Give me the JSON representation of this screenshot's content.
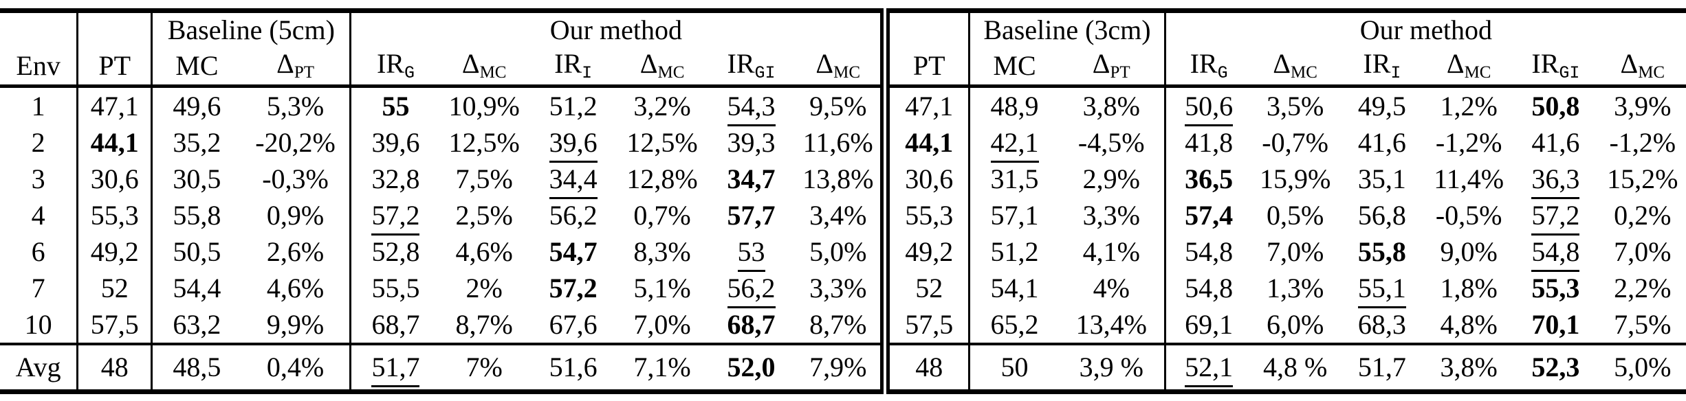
{
  "table": {
    "groups": [
      {
        "label": "Baseline (5cm)"
      },
      {
        "label": "Our method"
      },
      {
        "label": "Baseline (3cm)"
      },
      {
        "label": "Our method"
      }
    ],
    "columns": [
      {
        "base": "Env",
        "w": 4.6,
        "edge": "r"
      },
      {
        "base": "PT",
        "w": 4.4,
        "edge": "r"
      },
      {
        "base": "MC",
        "w": 5.3,
        "edge": ""
      },
      {
        "base": "Δ",
        "sub": "PT",
        "w": 6.5,
        "edge": "r"
      },
      {
        "base": "IR",
        "sub": "G",
        "w": 5.28,
        "edge": ""
      },
      {
        "base": "Δ",
        "sub": "MC",
        "w": 5.28,
        "edge": ""
      },
      {
        "base": "IR",
        "sub": "I",
        "w": 5.28,
        "edge": ""
      },
      {
        "base": "Δ",
        "sub": "MC",
        "w": 5.28,
        "edge": ""
      },
      {
        "base": "IR",
        "sub": "GI",
        "w": 5.28,
        "edge": ""
      },
      {
        "base": "Δ",
        "sub": "MC",
        "w": 5.3,
        "edge": "rr"
      },
      {
        "base": "PT",
        "w": 5.0,
        "edge": "r"
      },
      {
        "base": "MC",
        "w": 5.3,
        "edge": ""
      },
      {
        "base": "Δ",
        "sub": "PT",
        "w": 6.3,
        "edge": "r"
      },
      {
        "base": "IR",
        "sub": "G",
        "w": 5.15,
        "edge": ""
      },
      {
        "base": "Δ",
        "sub": "MC",
        "w": 5.15,
        "edge": ""
      },
      {
        "base": "IR",
        "sub": "I",
        "w": 5.15,
        "edge": ""
      },
      {
        "base": "Δ",
        "sub": "MC",
        "w": 5.15,
        "edge": ""
      },
      {
        "base": "IR",
        "sub": "GI",
        "w": 5.15,
        "edge": ""
      },
      {
        "base": "Δ",
        "sub": "MC",
        "w": 5.15,
        "edge": ""
      }
    ],
    "rows": [
      {
        "cells": [
          {
            "v": "1"
          },
          {
            "v": "47,1"
          },
          {
            "v": "49,6"
          },
          {
            "v": "5,3%"
          },
          {
            "v": "55",
            "b": true
          },
          {
            "v": "10,9%"
          },
          {
            "v": "51,2"
          },
          {
            "v": "3,2%"
          },
          {
            "v": "54,3",
            "u": true
          },
          {
            "v": "9,5%"
          },
          {
            "v": "47,1"
          },
          {
            "v": "48,9"
          },
          {
            "v": "3,8%"
          },
          {
            "v": "50,6",
            "u": true
          },
          {
            "v": "3,5%"
          },
          {
            "v": "49,5"
          },
          {
            "v": "1,2%"
          },
          {
            "v": "50,8",
            "b": true
          },
          {
            "v": "3,9%"
          }
        ]
      },
      {
        "cells": [
          {
            "v": "2"
          },
          {
            "v": "44,1",
            "b": true
          },
          {
            "v": "35,2"
          },
          {
            "v": "-20,2%"
          },
          {
            "v": "39,6"
          },
          {
            "v": "12,5%"
          },
          {
            "v": "39,6",
            "u": true
          },
          {
            "v": "12,5%"
          },
          {
            "v": "39,3"
          },
          {
            "v": "11,6%"
          },
          {
            "v": "44,1",
            "b": true
          },
          {
            "v": "42,1",
            "u": true
          },
          {
            "v": "-4,5%"
          },
          {
            "v": "41,8"
          },
          {
            "v": "-0,7%"
          },
          {
            "v": "41,6"
          },
          {
            "v": "-1,2%"
          },
          {
            "v": "41,6"
          },
          {
            "v": "-1,2%"
          }
        ]
      },
      {
        "cells": [
          {
            "v": "3"
          },
          {
            "v": "30,6"
          },
          {
            "v": "30,5"
          },
          {
            "v": "-0,3%"
          },
          {
            "v": "32,8"
          },
          {
            "v": "7,5%"
          },
          {
            "v": "34,4",
            "u": true
          },
          {
            "v": "12,8%"
          },
          {
            "v": "34,7",
            "b": true
          },
          {
            "v": "13,8%"
          },
          {
            "v": "30,6"
          },
          {
            "v": "31,5"
          },
          {
            "v": "2,9%"
          },
          {
            "v": "36,5",
            "b": true
          },
          {
            "v": "15,9%"
          },
          {
            "v": "35,1"
          },
          {
            "v": "11,4%"
          },
          {
            "v": "36,3",
            "u": true
          },
          {
            "v": "15,2%"
          }
        ]
      },
      {
        "cells": [
          {
            "v": "4"
          },
          {
            "v": "55,3"
          },
          {
            "v": "55,8"
          },
          {
            "v": "0,9%"
          },
          {
            "v": "57,2",
            "u": true
          },
          {
            "v": "2,5%"
          },
          {
            "v": "56,2"
          },
          {
            "v": "0,7%"
          },
          {
            "v": "57,7",
            "b": true
          },
          {
            "v": "3,4%"
          },
          {
            "v": "55,3"
          },
          {
            "v": "57,1"
          },
          {
            "v": "3,3%"
          },
          {
            "v": "57,4",
            "b": true
          },
          {
            "v": "0,5%"
          },
          {
            "v": "56,8"
          },
          {
            "v": "-0,5%"
          },
          {
            "v": "57,2",
            "u": true
          },
          {
            "v": "0,2%"
          }
        ]
      },
      {
        "cells": [
          {
            "v": "6"
          },
          {
            "v": "49,2"
          },
          {
            "v": "50,5"
          },
          {
            "v": "2,6%"
          },
          {
            "v": "52,8"
          },
          {
            "v": "4,6%"
          },
          {
            "v": "54,7",
            "b": true
          },
          {
            "v": "8,3%"
          },
          {
            "v": "53",
            "u": true
          },
          {
            "v": "5,0%"
          },
          {
            "v": "49,2"
          },
          {
            "v": "51,2"
          },
          {
            "v": "4,1%"
          },
          {
            "v": "54,8"
          },
          {
            "v": "7,0%"
          },
          {
            "v": "55,8",
            "b": true
          },
          {
            "v": "9,0%"
          },
          {
            "v": "54,8",
            "u": true
          },
          {
            "v": "7,0%"
          }
        ]
      },
      {
        "cells": [
          {
            "v": "7"
          },
          {
            "v": "52"
          },
          {
            "v": "54,4"
          },
          {
            "v": "4,6%"
          },
          {
            "v": "55,5"
          },
          {
            "v": "2%"
          },
          {
            "v": "57,2",
            "b": true
          },
          {
            "v": "5,1%"
          },
          {
            "v": "56,2",
            "u": true
          },
          {
            "v": "3,3%"
          },
          {
            "v": "52"
          },
          {
            "v": "54,1"
          },
          {
            "v": "4%"
          },
          {
            "v": "54,8"
          },
          {
            "v": "1,3%"
          },
          {
            "v": "55,1",
            "u": true
          },
          {
            "v": "1,8%"
          },
          {
            "v": "55,3",
            "b": true
          },
          {
            "v": "2,2%"
          }
        ]
      },
      {
        "cells": [
          {
            "v": "10"
          },
          {
            "v": "57,5"
          },
          {
            "v": "63,2"
          },
          {
            "v": "9,9%"
          },
          {
            "v": "68,7",
            "u": true
          },
          {
            "v": "8,7%"
          },
          {
            "v": "67,6"
          },
          {
            "v": "7,0%"
          },
          {
            "v": "68,7",
            "b": true
          },
          {
            "v": "8,7%"
          },
          {
            "v": "57,5"
          },
          {
            "v": "65,2"
          },
          {
            "v": "13,4%"
          },
          {
            "v": "69,1",
            "u": true
          },
          {
            "v": "6,0%"
          },
          {
            "v": "68,3"
          },
          {
            "v": "4,8%"
          },
          {
            "v": "70,1",
            "b": true
          },
          {
            "v": "7,5%"
          }
        ]
      },
      {
        "avg": true,
        "cells": [
          {
            "v": "Avg"
          },
          {
            "v": "48"
          },
          {
            "v": "48,5"
          },
          {
            "v": "0,4%"
          },
          {
            "v": "51,7",
            "u": true
          },
          {
            "v": "7%"
          },
          {
            "v": "51,6"
          },
          {
            "v": "7,1%"
          },
          {
            "v": "52,0",
            "b": true
          },
          {
            "v": "7,9%"
          },
          {
            "v": "48"
          },
          {
            "v": "50"
          },
          {
            "v": "3,9 %"
          },
          {
            "v": "52,1",
            "u": true
          },
          {
            "v": "4,8 %"
          },
          {
            "v": "51,7"
          },
          {
            "v": "3,8%"
          },
          {
            "v": "52,3",
            "b": true
          },
          {
            "v": "5,0%"
          }
        ]
      }
    ]
  }
}
